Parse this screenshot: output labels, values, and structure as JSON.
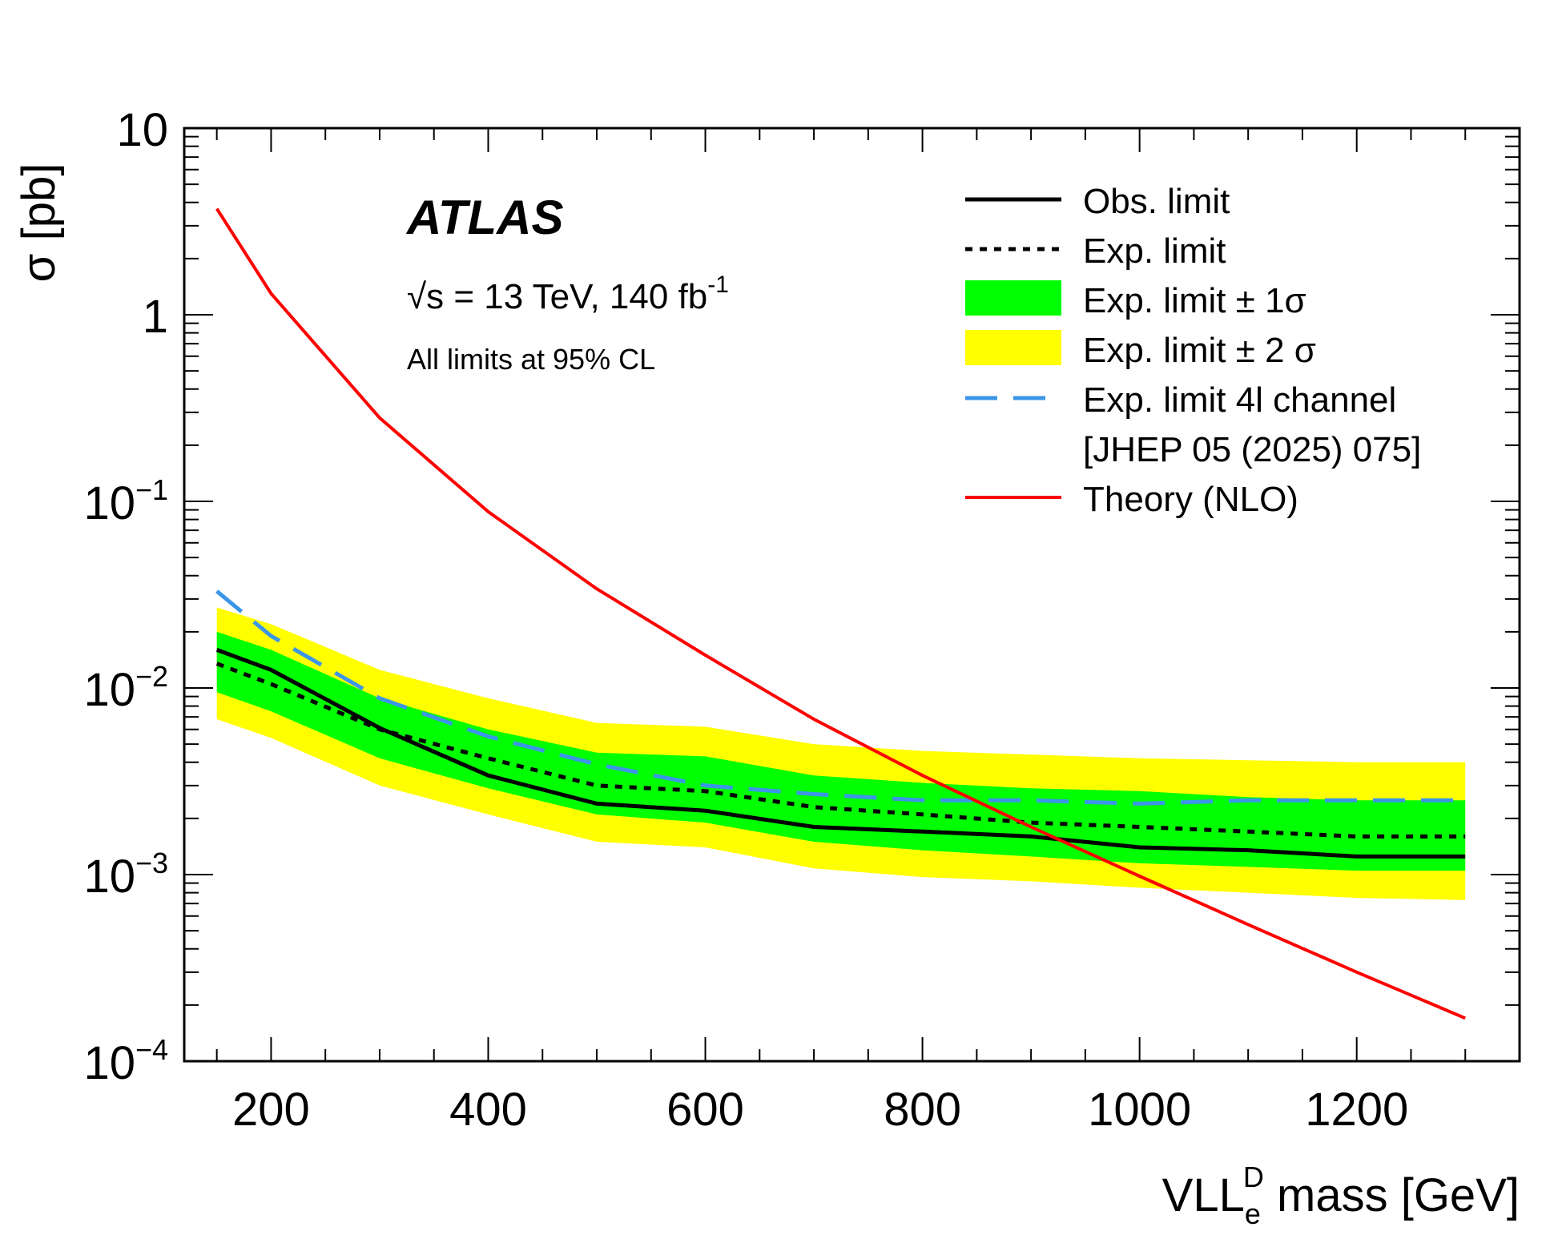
{
  "chart_data": {
    "type": "line",
    "title": "",
    "xlabel": "VLL_e^D mass [GeV]",
    "xlabel_parts": {
      "main": "VLL",
      "sub": "e",
      "sup": "D",
      "rest": " mass [GeV]"
    },
    "ylabel": "σ [pb]",
    "xlim": [
      120,
      1350
    ],
    "ylim": [
      0.0001,
      10
    ],
    "yscale": "log",
    "x_ticks": [
      200,
      400,
      600,
      800,
      1000,
      1200
    ],
    "x_tick_labels": [
      "200",
      "400",
      "600",
      "800",
      "1000",
      "1200"
    ],
    "y_ticks": [
      {
        "value": 10,
        "base": "10",
        "exp": ""
      },
      {
        "value": 1,
        "base": "1",
        "exp": ""
      },
      {
        "value": 0.1,
        "base": "10",
        "exp": "−1"
      },
      {
        "value": 0.01,
        "base": "10",
        "exp": "−2"
      },
      {
        "value": 0.001,
        "base": "10",
        "exp": "−3"
      },
      {
        "value": 0.0001,
        "base": "10",
        "exp": "−4"
      }
    ],
    "grid": false,
    "x": [
      150,
      200,
      300,
      400,
      500,
      600,
      700,
      800,
      900,
      1000,
      1100,
      1200,
      1300
    ],
    "bands": [
      {
        "name": "Exp. limit ± 2σ",
        "color": "#ffff00",
        "low": [
          0.0068,
          0.0054,
          0.003,
          0.0021,
          0.0015,
          0.0014,
          0.00108,
          0.00097,
          0.00092,
          0.00085,
          0.0008,
          0.00075,
          0.00073
        ],
        "high": [
          0.027,
          0.022,
          0.0125,
          0.0088,
          0.0065,
          0.0062,
          0.005,
          0.0046,
          0.0044,
          0.0042,
          0.0041,
          0.004,
          0.004
        ]
      },
      {
        "name": "Exp. limit ± 1σ",
        "color": "#00ff00",
        "low": [
          0.0095,
          0.0075,
          0.0042,
          0.0029,
          0.0021,
          0.0019,
          0.0015,
          0.00135,
          0.00125,
          0.00115,
          0.0011,
          0.00105,
          0.00105
        ],
        "high": [
          0.02,
          0.016,
          0.0088,
          0.006,
          0.0045,
          0.0043,
          0.0034,
          0.0031,
          0.0029,
          0.0028,
          0.0026,
          0.0025,
          0.0025
        ]
      }
    ],
    "series": [
      {
        "name": "Exp. limit 4l channel",
        "color": "#3b96e8",
        "style": "longdash",
        "values": [
          0.033,
          0.019,
          0.0088,
          0.0055,
          0.0039,
          0.003,
          0.0027,
          0.0025,
          0.0025,
          0.0024,
          0.0025,
          0.0025,
          0.0025
        ]
      },
      {
        "name": "Exp. limit",
        "color": "#000000",
        "style": "dotted",
        "values": [
          0.0135,
          0.0105,
          0.006,
          0.0042,
          0.003,
          0.0028,
          0.0023,
          0.0021,
          0.0019,
          0.0018,
          0.0017,
          0.0016,
          0.0016
        ]
      },
      {
        "name": "Obs. limit",
        "color": "#000000",
        "style": "solid",
        "values": [
          0.016,
          0.0125,
          0.0061,
          0.0034,
          0.0024,
          0.0022,
          0.0018,
          0.0017,
          0.0016,
          0.0014,
          0.00135,
          0.00125,
          0.00125
        ]
      },
      {
        "name": "Theory (NLO)",
        "color": "#ff0000",
        "style": "solid",
        "values": [
          3.7,
          1.3,
          0.28,
          0.088,
          0.034,
          0.015,
          0.0068,
          0.0034,
          0.0018,
          0.00098,
          0.00054,
          0.0003,
          0.00017
        ]
      }
    ],
    "legend": {
      "position": "top-right",
      "entries": [
        {
          "label": "Obs. limit",
          "kind": "line",
          "color": "#000000",
          "style": "solid"
        },
        {
          "label": "Exp. limit",
          "kind": "line",
          "color": "#000000",
          "style": "dotted"
        },
        {
          "label": "Exp. limit ± 1σ",
          "kind": "box",
          "color": "#00ff00"
        },
        {
          "label": "Exp. limit ± 2 σ",
          "kind": "box",
          "color": "#ffff00"
        },
        {
          "label": "Exp. limit 4l channel",
          "kind": "line",
          "color": "#3b96e8",
          "style": "longdash"
        },
        {
          "label": "[JHEP 05 (2025) 075]",
          "kind": "none"
        },
        {
          "label": "Theory (NLO)",
          "kind": "line",
          "color": "#ff0000",
          "style": "solid"
        }
      ]
    },
    "annotations": {
      "experiment": "ATLAS",
      "energy_lumi": "√s = 13 TeV, 140 fb",
      "lumi_exp": "-1",
      "cl_note": "All limits at 95% CL"
    }
  }
}
